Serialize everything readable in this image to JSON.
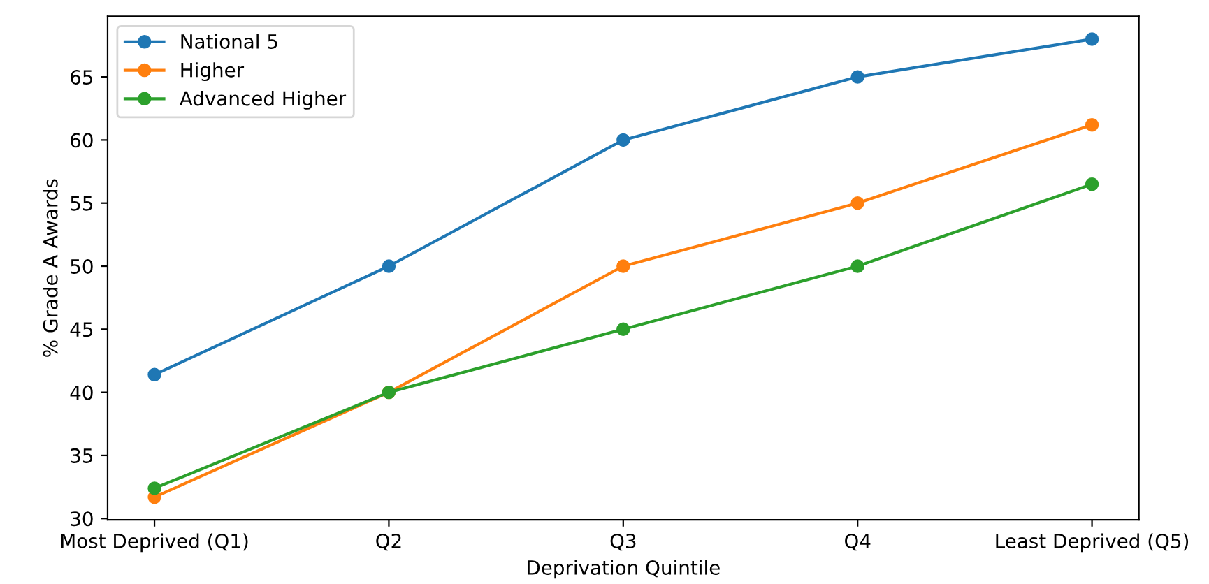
{
  "chart_data": {
    "type": "line",
    "xlabel": "Deprivation Quintile",
    "ylabel": "% Grade A Awards",
    "categories": [
      "Most Deprived (Q1)",
      "Q2",
      "Q3",
      "Q4",
      "Least Deprived (Q5)"
    ],
    "series": [
      {
        "name": "National 5",
        "color": "#1f77b4",
        "values": [
          41.4,
          50,
          60,
          65,
          68
        ]
      },
      {
        "name": "Higher",
        "color": "#ff7f0e",
        "values": [
          31.7,
          40,
          50,
          55,
          61.2
        ]
      },
      {
        "name": "Advanced Higher",
        "color": "#2ca02c",
        "values": [
          32.4,
          40,
          45,
          50,
          56.5
        ]
      }
    ],
    "ylim": [
      29.9,
      69.8
    ],
    "yticks": [
      30,
      35,
      40,
      45,
      50,
      55,
      60,
      65
    ],
    "marker": "circle",
    "line_style": "solid",
    "legend": "top left",
    "grid": false
  }
}
